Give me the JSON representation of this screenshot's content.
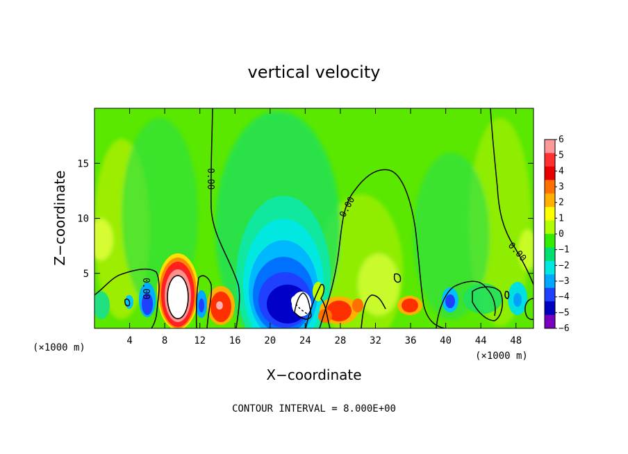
{
  "chart_data": {
    "type": "heatmap",
    "title": "vertical velocity",
    "xlabel": "X−coordinate",
    "ylabel": "Z−coordinate",
    "x_unit_left": "(×1000 m)",
    "x_unit_right": "(×1000 m)",
    "xlim": [
      0,
      50
    ],
    "ylim": [
      0,
      20
    ],
    "xticks": [
      4,
      8,
      12,
      16,
      20,
      24,
      28,
      32,
      36,
      40,
      44,
      48
    ],
    "xtick_labels": [
      "4",
      "8",
      "12",
      "16",
      "20",
      "24",
      "28",
      "32",
      "36",
      "40",
      "44",
      "48"
    ],
    "yticks": [
      5,
      10,
      15
    ],
    "ytick_labels": [
      "5",
      "10",
      "15"
    ],
    "colorbar": {
      "ticks": [
        6,
        5,
        4,
        3,
        2,
        1,
        0,
        -1,
        -2,
        -3,
        -4,
        -5,
        -6
      ],
      "tick_labels": [
        "6",
        "5",
        "4",
        "3",
        "2",
        "1",
        "0",
        "−1",
        "−2",
        "−3",
        "−4",
        "−5",
        "−6"
      ],
      "range": [
        -6,
        6
      ],
      "colors": [
        "#ff9999",
        "#ff3030",
        "#e80000",
        "#ff7000",
        "#ffb000",
        "#ffff00",
        "#b0ff00",
        "#33ee00",
        "#00e070",
        "#00e8e0",
        "#00a8ff",
        "#2040ff",
        "#0000c0",
        "#7a00c0"
      ]
    },
    "field_features": [
      {
        "x": 9.5,
        "z": 3,
        "w": 12,
        "sign": "positive"
      },
      {
        "x": 14.5,
        "z": 2,
        "w": 4,
        "sign": "positive"
      },
      {
        "x": 6,
        "z": 2.5,
        "w": -4,
        "sign": "negative"
      },
      {
        "x": 12.5,
        "z": 2,
        "w": -3,
        "sign": "negative"
      },
      {
        "x": 21,
        "z": 3,
        "w": -5,
        "sign": "negative"
      },
      {
        "x": 23.5,
        "z": 2.5,
        "w": -10,
        "sign": "negative"
      },
      {
        "x": 28.5,
        "z": 2,
        "w": 3,
        "sign": "positive"
      },
      {
        "x": 36,
        "z": 2,
        "w": 3,
        "sign": "positive"
      },
      {
        "x": 40.5,
        "z": 2.5,
        "w": -3,
        "sign": "negative"
      }
    ],
    "contour_labels": [
      "0.00",
      "0.00",
      "0.00",
      "0.00"
    ],
    "annotation": "CONTOUR INTERVAL =  8.000E+00"
  }
}
